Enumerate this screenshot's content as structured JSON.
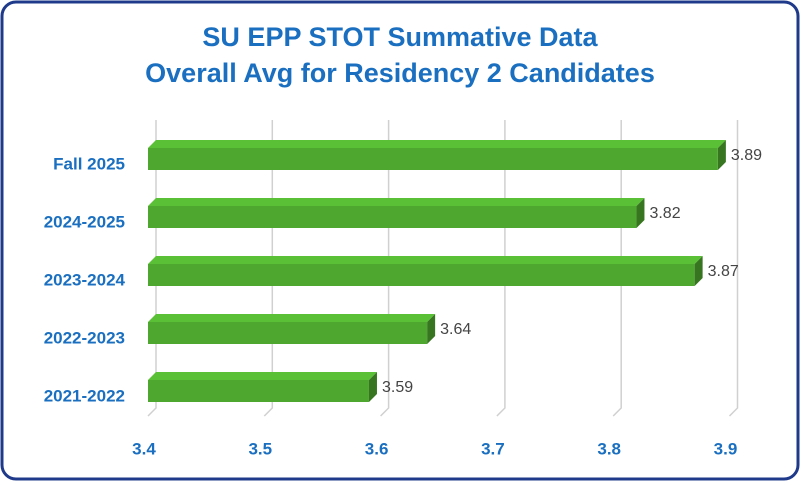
{
  "chart_data": {
    "type": "bar",
    "orientation": "horizontal",
    "title": "SU EPP STOT Summative Data",
    "subtitle": "Overall Avg for Residency 2 Candidates",
    "categories": [
      "Fall 2025",
      "2024-2025",
      "2023-2024",
      "2022-2023",
      "2021-2022"
    ],
    "values": [
      3.89,
      3.82,
      3.87,
      3.64,
      3.59
    ],
    "color": "#4ea72e",
    "xlim": [
      3.4,
      3.9
    ],
    "xticks": [
      3.4,
      3.5,
      3.6,
      3.7,
      3.8,
      3.9
    ],
    "grid": true
  }
}
